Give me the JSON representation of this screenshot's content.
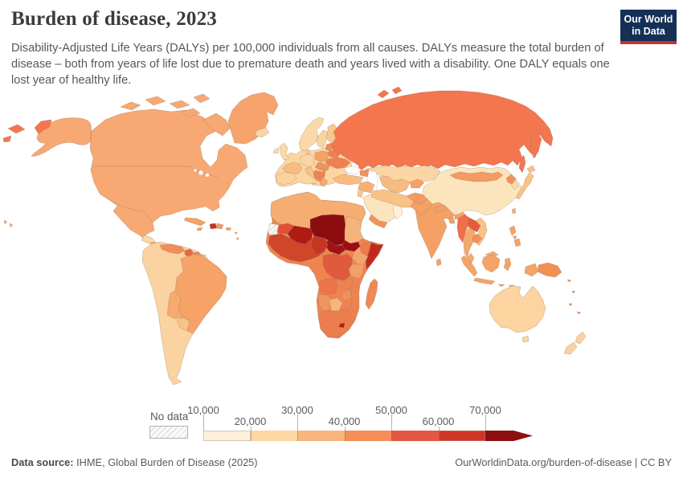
{
  "header": {
    "title": "Burden of disease, 2023",
    "subtitle": "Disability-Adjusted Life Years (DALYs) per 100,000 individuals from all causes. DALYs measure the total burden of disease – both from years of life lost due to premature death and years lived with a disability. One DALY equals one lost year of healthy life.",
    "logo": {
      "line1": "Our World",
      "line2": "in Data",
      "bg_color": "#143057",
      "accent_color": "#c0342b",
      "text_color": "#ffffff"
    }
  },
  "legend": {
    "no_data_label": "No data",
    "tick_labels": [
      "10,000",
      "20,000",
      "30,000",
      "40,000",
      "50,000",
      "60,000",
      "70,000"
    ],
    "bin_colors": [
      "#fdf0da",
      "#fcd7a1",
      "#f9b67c",
      "#f68c58",
      "#e55742",
      "#d23426",
      "#8e0f10"
    ],
    "tick_color": "#b3b3b3",
    "label_color": "#5b5b5b"
  },
  "footer": {
    "source_label": "Data source:",
    "source_value": " IHME, Global Burden of Disease (2025)",
    "link_text": "OurWorldinData.org/burden-of-disease | CC BY"
  },
  "map": {
    "ocean_color": "#ffffff",
    "border_color": "#a08c80",
    "no_data_pattern": {
      "bg": "#f7f6f3",
      "line": "#ccc9c4"
    },
    "region_colors": {
      "na": "#f7a873",
      "greenland": "#f7a36c",
      "russia": "#f3764e",
      "iceland": "#fbd5a2",
      "guatemala": "#fbd7a4",
      "cuba": "#f7a263",
      "haiti": "#c62f21",
      "dominican": "#f49a62",
      "carib": "#f5a265",
      "sa_base": "#fbd3a0",
      "venezuela": "#f18d5a",
      "guyana": "#e8693f",
      "suriname": "#ef8553",
      "brazil": "#f7a266",
      "bolivia": "#f7aa6e",
      "paraguay": "#f9c286",
      "africa_base": "#ef8450",
      "north_africa": "#f6ad72",
      "mauritania": "#e05138",
      "mali": "#b01a14",
      "niger_chad": "#8c0d10",
      "sudan": "#f5b47c",
      "ssudan": "#9c0c12",
      "car": "#a01014",
      "wafrica": "#cf4629",
      "nigeria": "#c53521",
      "ethiopia": "#ef7a4c",
      "somalia": "#c2291d",
      "kenya": "#f3a46c",
      "tanzania": "#f2a166",
      "drc": "#e05a3d",
      "angola": "#ed744a",
      "zambia": "#ee8350",
      "mozambique": "#ee8350",
      "zimbabwe": "#f0905a",
      "namibia": "#f0955e",
      "botswana": "#f6b57d",
      "southafrica": "#ee7d4e",
      "lesotho": "#b51d18",
      "madagascar": "#ef8853",
      "europe_base": "#fbd5a2",
      "iberia": "#fbd3a0",
      "france": "#f8bc80",
      "germany": "#fbd5a2",
      "italy": "#f9c286",
      "poland": "#f5a263",
      "belarus": "#ee8150",
      "ukraine": "#ee8150",
      "romania": "#f0925c",
      "balkans": "#ee8351",
      "greece": "#f6aa6e",
      "uk": "#fbd9a9",
      "norway": "#fbd8a8",
      "sweden": "#fad4a0",
      "finland": "#f9c88f",
      "baltics": "#f08c55",
      "denmark": "#f9cf9b",
      "kazakhstan": "#fbd5a2",
      "uzbek": "#f6bb82",
      "kyrgyz": "#f3a166",
      "turkey": "#f8bc80",
      "caucasus": "#f0925c",
      "syria_iraq": "#f6b275",
      "levant": "#f9c88f",
      "saudi": "#fce4bd",
      "oman": "#fdf0da",
      "yemen": "#f2935c",
      "iran": "#f8c288",
      "afghan": "#f29a60",
      "pakistan": "#f5a166",
      "india": "#f5a166",
      "bangladesh": "#f2a166",
      "srilanka": "#f5a166",
      "nepal": "#f2a166",
      "china": "#fce4bc",
      "mongolia": "#f49a62",
      "nkorea": "#f29158",
      "skorea": "#fcdcae",
      "japan": "#f9c286",
      "taiwan": "#f8b277",
      "myanmar": "#ee6f48",
      "laos": "#e55c3c",
      "vietnam": "#f9c286",
      "thailand": "#f6a76c",
      "cambodia": "#f29158",
      "malaysia": "#f6aa6e",
      "indonesia": "#f6a466",
      "philippines": "#f5a265",
      "png": "#f19055",
      "australia": "#fbd49f",
      "nz": "#fbd0a0",
      "pacific": "#f19055",
      "nodata": "pattern"
    }
  }
}
